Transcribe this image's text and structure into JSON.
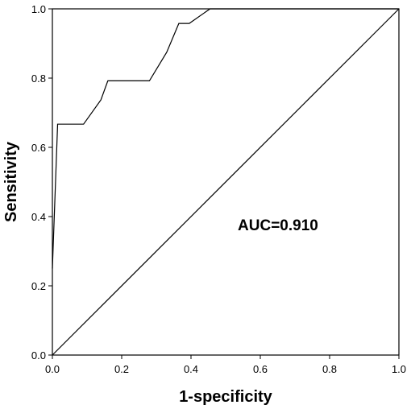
{
  "chart_data": {
    "type": "line",
    "xlabel": "1-specificity",
    "ylabel": "Sensitivity",
    "xlim": [
      0,
      1
    ],
    "ylim": [
      0,
      1
    ],
    "x_ticks": [
      "0.0",
      "0.2",
      "0.4",
      "0.6",
      "0.8",
      "1.0"
    ],
    "y_ticks": [
      "0.0",
      "0.2",
      "0.4",
      "0.6",
      "0.8",
      "1.0"
    ],
    "annotation": "AUC=0.910",
    "grid": false,
    "series": [
      {
        "points": [
          [
            0.0,
            0.25
          ],
          [
            0.015,
            0.667
          ],
          [
            0.09,
            0.667
          ],
          [
            0.14,
            0.737
          ],
          [
            0.16,
            0.792
          ],
          [
            0.28,
            0.792
          ],
          [
            0.33,
            0.875
          ],
          [
            0.365,
            0.958
          ],
          [
            0.395,
            0.958
          ],
          [
            0.455,
            1.0
          ],
          [
            1.0,
            1.0
          ]
        ]
      },
      {
        "points": [
          [
            0.0,
            0.0
          ],
          [
            1.0,
            1.0
          ]
        ]
      }
    ]
  }
}
